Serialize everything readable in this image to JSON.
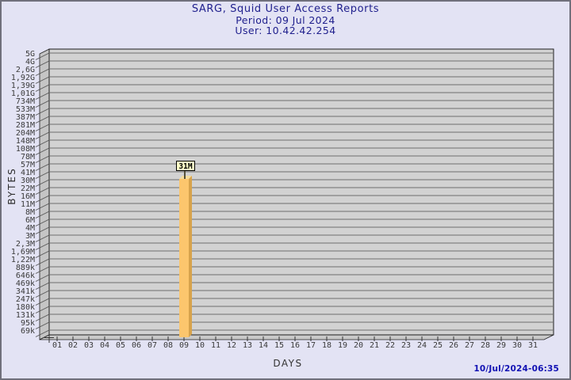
{
  "window": {
    "background": "#e3e3f4",
    "border_color": "#70707c"
  },
  "chart_data": {
    "type": "bar",
    "title": "SARG, Squid User Access Reports",
    "subtitle": "Period: 09 Jul 2024",
    "user_line": "User: 10.42.42.254",
    "xlabel": "DAYS",
    "ylabel": "BYTES",
    "timestamp": "10/Jul/2024-06:35",
    "scale": "logarithmic",
    "grid": true,
    "x_categories": [
      "01",
      "02",
      "03",
      "04",
      "05",
      "06",
      "07",
      "08",
      "09",
      "10",
      "11",
      "12",
      "13",
      "14",
      "15",
      "16",
      "17",
      "18",
      "19",
      "20",
      "21",
      "22",
      "23",
      "24",
      "25",
      "26",
      "27",
      "28",
      "29",
      "30",
      "31"
    ],
    "y_tick_labels": [
      "5G",
      "4G",
      "2,6G",
      "1,92G",
      "1,39G",
      "1,01G",
      "734M",
      "533M",
      "387M",
      "281M",
      "204M",
      "148M",
      "108M",
      "78M",
      "57M",
      "41M",
      "30M",
      "22M",
      "16M",
      "11M",
      "8M",
      "6M",
      "4M",
      "3M",
      "2,3M",
      "1,69M",
      "1,22M",
      "889k",
      "646k",
      "469k",
      "341k",
      "247k",
      "180k",
      "131k",
      "95k",
      "69k"
    ],
    "bars": [
      {
        "day": "09",
        "value_label": "31M",
        "value_bytes": 31000000
      }
    ],
    "colors": {
      "plot_bg": "#d2d2d2",
      "wall": "#c5c5c5",
      "floor": "#c9c9c9",
      "grid": "#6e6e6e",
      "frame": "#1f1f1f",
      "tick_text": "#3a3a3a",
      "bar_front": "#fcc66d",
      "bar_side": "#d7a34c",
      "bar_top": "#f4dc9c",
      "value_box_bg": "#ffffc8",
      "value_box_border": "#000000",
      "value_text": "#000000",
      "stem": "#55513a",
      "title_color": "#21218e",
      "timestamp_color": "#1212b4"
    }
  }
}
